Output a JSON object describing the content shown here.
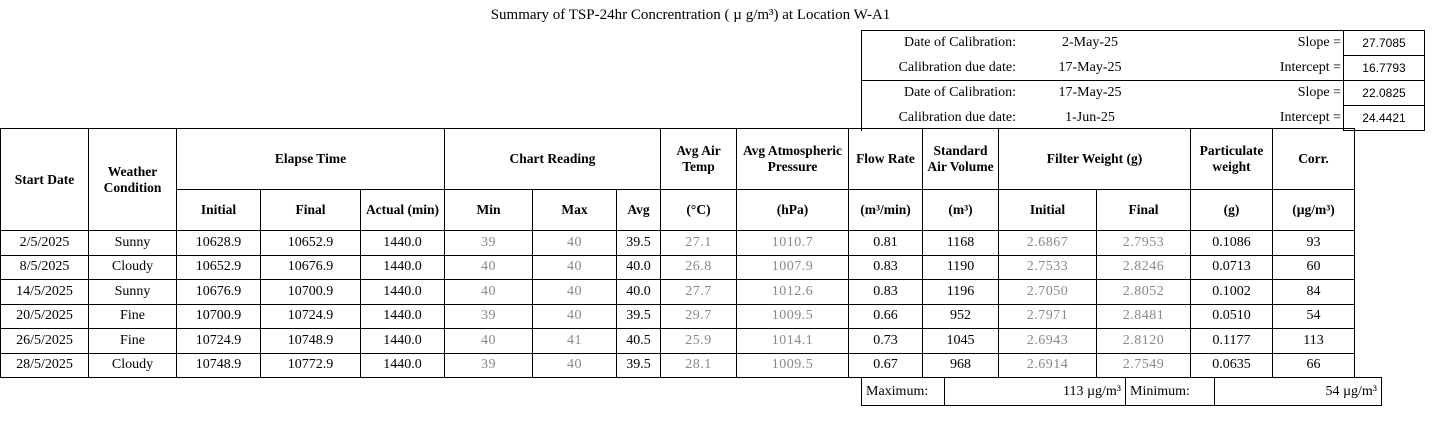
{
  "title": "Summary of TSP-24hr Concrentration ( µ g/m³) at Location W-A1",
  "calibrations": [
    {
      "date_label": "Date of Calibration:",
      "date": "2-May-25",
      "key": "Slope =",
      "value": "27.7085"
    },
    {
      "date_label": "Calibration due date:",
      "date": "17-May-25",
      "key": "Intercept =",
      "value": "16.7793"
    },
    {
      "date_label": "Date of Calibration:",
      "date": "17-May-25",
      "key": "Slope =",
      "value": "22.0825"
    },
    {
      "date_label": "Calibration due date:",
      "date": "1-Jun-25",
      "key": "Intercept =",
      "value": "24.4421"
    }
  ],
  "headers": {
    "start_date": "Start Date",
    "weather": "Weather Condition",
    "elapse": "Elapse Time",
    "chart": "Chart Reading",
    "avg_temp": "Avg Air Temp",
    "avg_pressure": "Avg Atmospheric Pressure",
    "flow": "Flow Rate",
    "std_vol": "Standard Air Volume",
    "filter": "Filter Weight (g)",
    "particulate": "Particulate weight",
    "corr": "Corr.",
    "initial": "Initial",
    "final": "Final",
    "actual": "Actual (min)",
    "min": "Min",
    "max": "Max",
    "avg": "Avg",
    "temp_unit": "(°C)",
    "pressure_unit": "(hPa)",
    "flow_unit": "(m³/min)",
    "vol_unit": "(m³)",
    "f_initial": "Initial",
    "f_final": "Final",
    "part_unit": "(g)",
    "corr_unit": "(µg/m³)"
  },
  "rows": [
    {
      "date": "2/5/2025",
      "weather": "Sunny",
      "initial": "10628.9",
      "final": "10652.9",
      "actual": "1440.0",
      "min": "39",
      "max": "40",
      "avg": "39.5",
      "temp": "27.1",
      "pressure": "1010.7",
      "flow": "0.81",
      "volume": "1168",
      "f_initial": "2.6867",
      "f_final": "2.7953",
      "particulate": "0.1086",
      "corr": "93"
    },
    {
      "date": "8/5/2025",
      "weather": "Cloudy",
      "initial": "10652.9",
      "final": "10676.9",
      "actual": "1440.0",
      "min": "40",
      "max": "40",
      "avg": "40.0",
      "temp": "26.8",
      "pressure": "1007.9",
      "flow": "0.83",
      "volume": "1190",
      "f_initial": "2.7533",
      "f_final": "2.8246",
      "particulate": "0.0713",
      "corr": "60"
    },
    {
      "date": "14/5/2025",
      "weather": "Sunny",
      "initial": "10676.9",
      "final": "10700.9",
      "actual": "1440.0",
      "min": "40",
      "max": "40",
      "avg": "40.0",
      "temp": "27.7",
      "pressure": "1012.6",
      "flow": "0.83",
      "volume": "1196",
      "f_initial": "2.7050",
      "f_final": "2.8052",
      "particulate": "0.1002",
      "corr": "84"
    },
    {
      "date": "20/5/2025",
      "weather": "Fine",
      "initial": "10700.9",
      "final": "10724.9",
      "actual": "1440.0",
      "min": "39",
      "max": "40",
      "avg": "39.5",
      "temp": "29.7",
      "pressure": "1009.5",
      "flow": "0.66",
      "volume": "952",
      "f_initial": "2.7971",
      "f_final": "2.8481",
      "particulate": "0.0510",
      "corr": "54"
    },
    {
      "date": "26/5/2025",
      "weather": "Fine",
      "initial": "10724.9",
      "final": "10748.9",
      "actual": "1440.0",
      "min": "40",
      "max": "41",
      "avg": "40.5",
      "temp": "25.9",
      "pressure": "1014.1",
      "flow": "0.73",
      "volume": "1045",
      "f_initial": "2.6943",
      "f_final": "2.8120",
      "particulate": "0.1177",
      "corr": "113"
    },
    {
      "date": "28/5/2025",
      "weather": "Cloudy",
      "initial": "10748.9",
      "final": "10772.9",
      "actual": "1440.0",
      "min": "39",
      "max": "40",
      "avg": "39.5",
      "temp": "28.1",
      "pressure": "1009.5",
      "flow": "0.67",
      "volume": "968",
      "f_initial": "2.6914",
      "f_final": "2.7549",
      "particulate": "0.0635",
      "corr": "66"
    }
  ],
  "footer": {
    "max_label": "Maximum:",
    "max_value": "113 µg/m³",
    "min_label": "Minimum:",
    "min_value": "54 µg/m³"
  }
}
